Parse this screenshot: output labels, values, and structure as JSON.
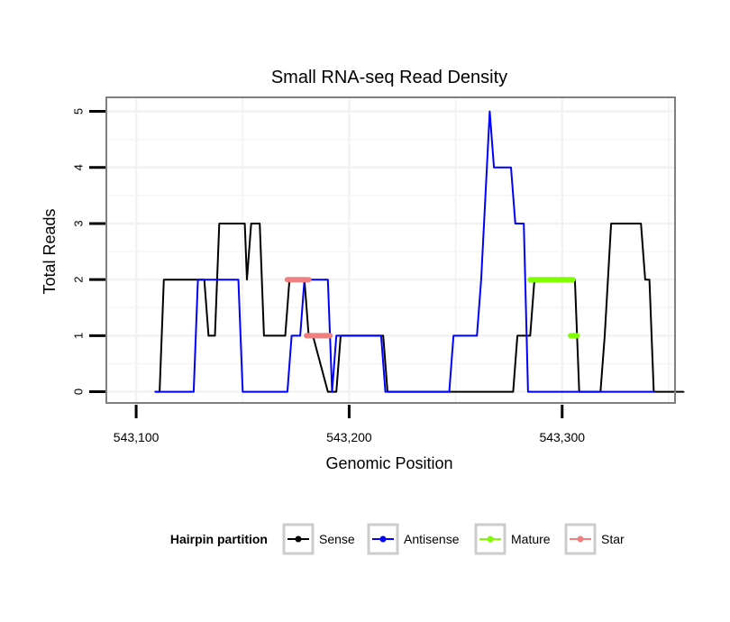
{
  "chart_data": {
    "type": "line",
    "title": "Small RNA-seq Read Density",
    "xlabel": "Genomic Position",
    "ylabel": "Total Reads",
    "xlim": [
      543086,
      543353
    ],
    "ylim": [
      -0.2,
      5.25
    ],
    "xticks": [
      543100,
      543200,
      543300
    ],
    "xtick_labels": [
      "543,100",
      "543,200",
      "543,300"
    ],
    "yticks": [
      0,
      1,
      2,
      3,
      4,
      5
    ],
    "ytick_labels": [
      "0",
      "1",
      "2",
      "3",
      "4",
      "5"
    ],
    "grid": true,
    "legend_position": "bottom",
    "legend": {
      "title": "Hairpin partition",
      "entries": [
        {
          "name": "Sense",
          "color": "#000000"
        },
        {
          "name": "Antisense",
          "color": "#0000ff"
        },
        {
          "name": "Mature",
          "color": "#7fff00"
        },
        {
          "name": "Star",
          "color": "#f08080"
        }
      ]
    },
    "series": [
      {
        "name": "Sense",
        "color": "#000000",
        "width": 2,
        "x": [
          543109,
          543111,
          543113,
          543128,
          543132,
          543134,
          543137,
          543139,
          543151,
          543152,
          543154,
          543158,
          543160,
          543170,
          543172,
          543174,
          543179,
          543181,
          543183,
          543190,
          543194,
          543196,
          543198,
          543216,
          543218,
          543220,
          543277,
          543279,
          543285,
          543287,
          543306,
          543308,
          543318,
          543320,
          543323,
          543337,
          543339,
          543341,
          543342,
          543343,
          543357
        ],
        "y": [
          0,
          0,
          2,
          2,
          2,
          1,
          1,
          3,
          3,
          2,
          3,
          3,
          1,
          1,
          2,
          2,
          2,
          1,
          1,
          0,
          0,
          1,
          1,
          1,
          0,
          0,
          0,
          1,
          1,
          2,
          2,
          0,
          0,
          1,
          3,
          3,
          2,
          2,
          1,
          0,
          0
        ]
      },
      {
        "name": "Antisense",
        "color": "#0000ff",
        "width": 2,
        "x": [
          543109,
          543127,
          543129,
          543148,
          543150,
          543171,
          543173,
          543177,
          543179,
          543190,
          543192,
          543194,
          543197,
          543215,
          543217,
          543247,
          543249,
          543260,
          543262,
          543266,
          543268,
          543276,
          543278,
          543282,
          543284,
          543343
        ],
        "y": [
          0,
          0,
          2,
          2,
          0,
          0,
          1,
          1,
          2,
          2,
          0,
          1,
          1,
          1,
          0,
          0,
          1,
          1,
          2,
          5,
          4,
          4,
          3,
          3,
          0,
          0
        ]
      },
      {
        "name": "Mature",
        "color": "#7fff00",
        "width": 6,
        "segments": [
          {
            "x": [
              543285,
              543305
            ],
            "y": [
              2,
              2
            ]
          },
          {
            "x": [
              543304,
              543307
            ],
            "y": [
              1,
              1
            ]
          }
        ]
      },
      {
        "name": "Star",
        "color": "#f08080",
        "width": 6,
        "segments": [
          {
            "x": [
              543171,
              543181
            ],
            "y": [
              2,
              2
            ]
          },
          {
            "x": [
              543180,
              543191
            ],
            "y": [
              1,
              1
            ]
          }
        ]
      }
    ]
  }
}
